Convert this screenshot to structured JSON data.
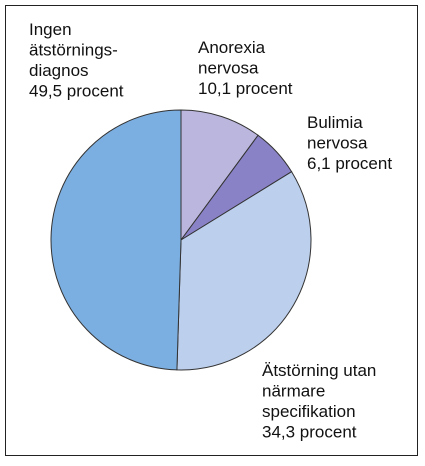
{
  "chart_data": {
    "type": "pie",
    "categories": [
      [
        "Anorexia",
        "nervosa"
      ],
      [
        "Bulimia",
        "nervosa"
      ],
      [
        "Ätstörning utan",
        "närmare",
        "specifikation"
      ],
      [
        "Ingen",
        "ätstörnings-",
        "diagnos"
      ]
    ],
    "values": [
      10.1,
      6.1,
      34.3,
      49.5
    ],
    "value_labels": [
      "10,1 procent",
      "6,1 procent",
      "34,3 procent",
      "49,5 procent"
    ],
    "colors": [
      "#bab6dd",
      "#8982c6",
      "#bccfec",
      "#7cafe1"
    ]
  }
}
